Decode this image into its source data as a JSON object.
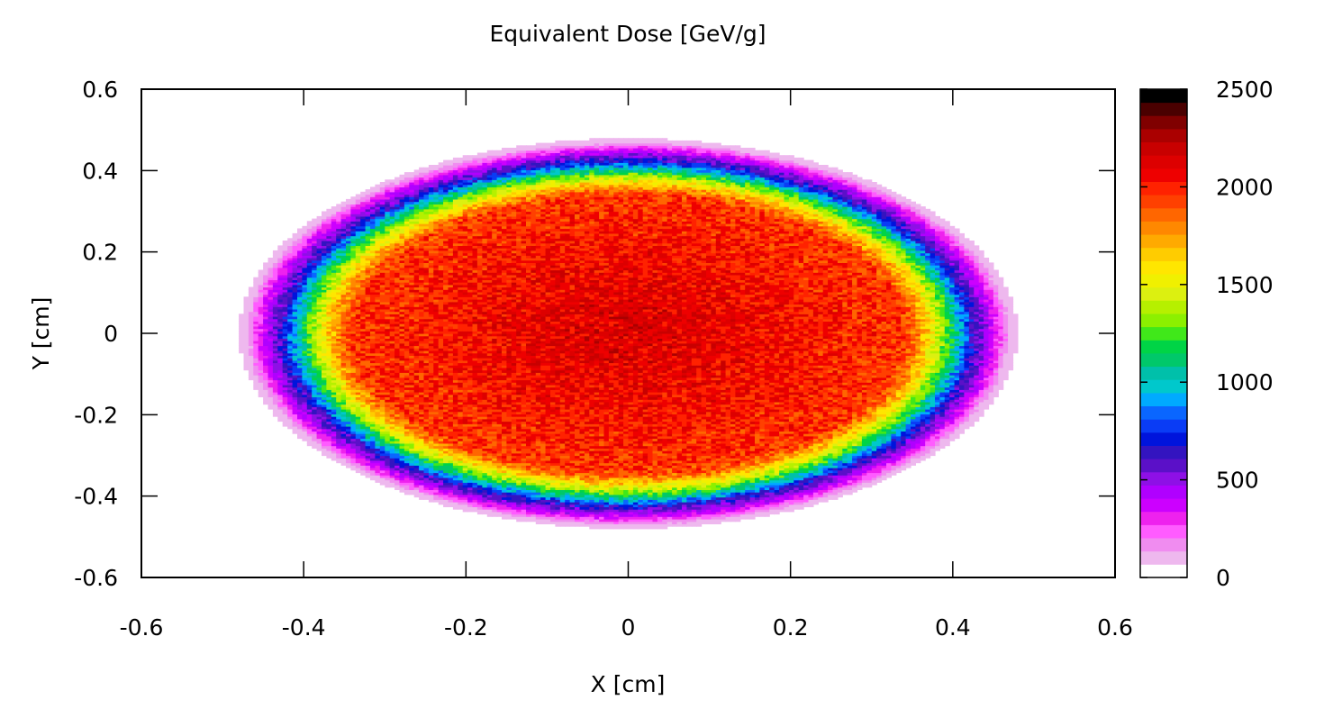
{
  "chart_data": {
    "type": "heatmap",
    "title": "Equivalent Dose [GeV/g]",
    "xlabel": "X [cm]",
    "ylabel": "Y [cm]",
    "xlim": [
      -0.6,
      0.6
    ],
    "ylim": [
      -0.6,
      0.6
    ],
    "x_ticks": [
      "-0.6",
      "-0.4",
      "-0.2",
      "0",
      "0.2",
      "0.4",
      "0.6"
    ],
    "y_ticks": [
      "-0.6",
      "-0.4",
      "-0.2",
      "0",
      "0.2",
      "0.4",
      "0.6"
    ],
    "grid": false,
    "colorbar": {
      "range": [
        0,
        2500
      ],
      "ticks": [
        "0",
        "500",
        "1000",
        "1500",
        "2000",
        "2500"
      ],
      "colors": [
        "#ffffff",
        "#eeb8ee",
        "#f08cf0",
        "#ff5cff",
        "#ee22ee",
        "#cc00ff",
        "#b000ff",
        "#8e10e6",
        "#5b10c8",
        "#3314c0",
        "#0014dc",
        "#0a3cf5",
        "#0a66ff",
        "#00aaff",
        "#00c8cc",
        "#00c0aa",
        "#00c86a",
        "#00d446",
        "#40e81a",
        "#8cf000",
        "#b6f000",
        "#dcf010",
        "#f0f000",
        "#ffe600",
        "#ffcc00",
        "#ffaa00",
        "#ff8800",
        "#ff6600",
        "#ff4000",
        "#ff2200",
        "#ee0000",
        "#dd0000",
        "#c80000",
        "#aa0000",
        "#800000",
        "#4a0000",
        "#000000"
      ]
    },
    "distribution": {
      "shape": "ellipse",
      "center": [
        0.0,
        0.0
      ],
      "half_width_x": 0.47,
      "half_width_y": 0.47,
      "peak_dose": 2150,
      "plateau_dose": 1850,
      "edge_ring_dose": 700
    }
  }
}
